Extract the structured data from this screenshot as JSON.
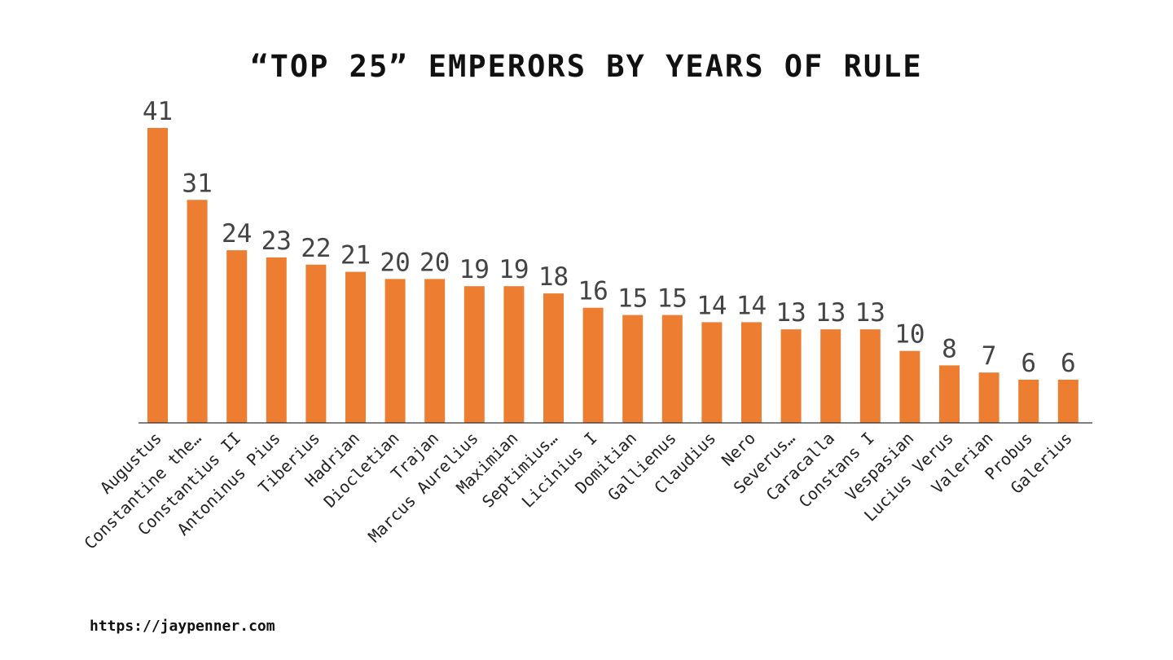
{
  "chart_data": {
    "type": "bar",
    "title": "“TOP 25” EMPERORS BY YEARS OF RULE",
    "xlabel": "",
    "ylabel": "",
    "categories": [
      "Augustus",
      "Constantine the…",
      "Constantius II",
      "Antoninus Pius",
      "Tiberius",
      "Hadrian",
      "Diocletian",
      "Trajan",
      "Marcus Aurelius",
      "Maximian",
      "Septimius…",
      "Licinius I",
      "Domitian",
      "Gallienus",
      "Claudius",
      "Nero",
      "Severus…",
      "Caracalla",
      "Constans I",
      "Vespasian",
      "Lucius Verus",
      "Valerian",
      "Probus",
      "Galerius"
    ],
    "values": [
      41,
      31,
      24,
      23,
      22,
      21,
      20,
      20,
      19,
      19,
      18,
      16,
      15,
      15,
      14,
      14,
      13,
      13,
      13,
      10,
      8,
      7,
      6,
      6
    ],
    "data_labels": [
      "41",
      "31",
      "24",
      "23",
      "22",
      "21",
      "20",
      "20",
      "19",
      "19",
      "18",
      "16",
      "15",
      "15",
      "14",
      "14",
      "13",
      "13",
      "13",
      "10",
      "8",
      "7",
      "6",
      "6"
    ],
    "ylim": [
      0,
      41
    ],
    "bar_color": "#ED7D31",
    "grid": false,
    "legend": "none"
  },
  "source": "https://jaypenner.com"
}
